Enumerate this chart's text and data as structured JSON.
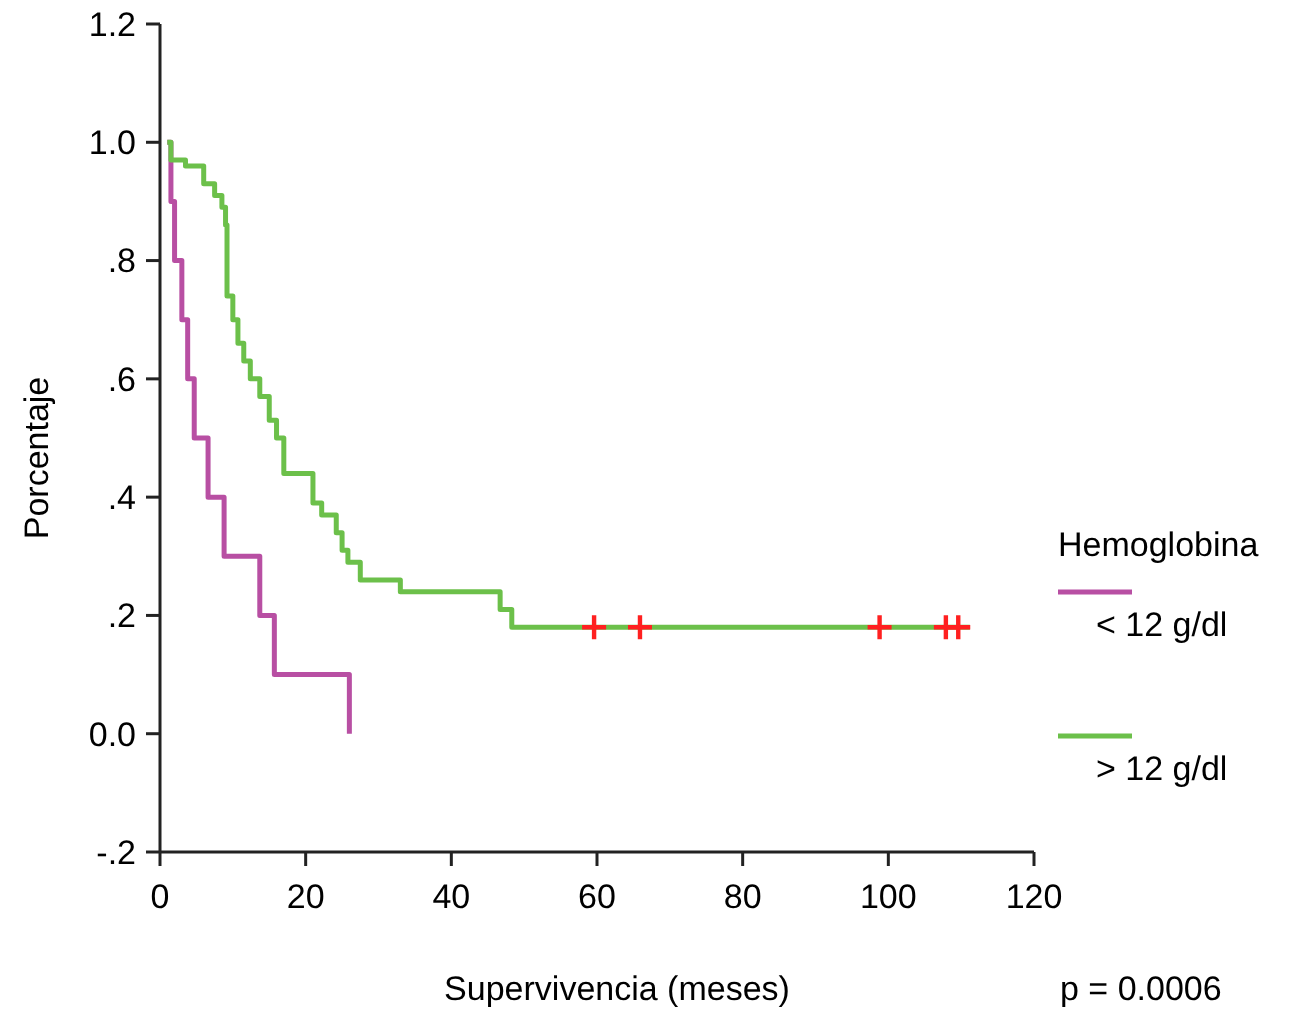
{
  "chart_data": {
    "type": "step",
    "xlabel": "Supervivencia (meses)",
    "ylabel": "Porcentaje",
    "legend_title": "Hemoglobina",
    "legend": "right",
    "grid": false,
    "xlim": [
      0,
      120
    ],
    "xticks": [
      0,
      20,
      40,
      60,
      80,
      100,
      120
    ],
    "ylim": [
      -0.2,
      1.2
    ],
    "yticks": [
      {
        "value": -0.2,
        "label": "-.2"
      },
      {
        "value": 0,
        "label": "0.0"
      },
      {
        "value": 0.2,
        "label": ".2"
      },
      {
        "value": 0.4,
        "label": ".4"
      },
      {
        "value": 0.6,
        "label": ".6"
      },
      {
        "value": 0.8,
        "label": ".8"
      },
      {
        "value": 1,
        "label": "1.0"
      },
      1.2
    ],
    "annotations": [
      "p = 0.0006"
    ],
    "series": [
      {
        "name": "< 12 g/dl",
        "color": "#b84fa3",
        "x": [
          1,
          1.5,
          2,
          3,
          3.8,
          4.7,
          6.6,
          8.8,
          13.7,
          15.7,
          26
        ],
        "values": [
          1,
          0.9,
          0.8,
          0.7,
          0.6,
          0.5,
          0.4,
          0.3,
          0.2,
          0.1,
          0
        ]
      },
      {
        "name": "> 12 g/dl",
        "color": "#6cc04a",
        "x": [
          1,
          1.5,
          3.5,
          6,
          7.5,
          8.5,
          9,
          9.2,
          10,
          10.7,
          11.5,
          12.4,
          13.7,
          15,
          16,
          17,
          21,
          22.2,
          24.2,
          25,
          25.8,
          27.5,
          33,
          46.7,
          48.3,
          111.2
        ],
        "values": [
          1,
          0.97,
          0.96,
          0.93,
          0.91,
          0.89,
          0.86,
          0.74,
          0.7,
          0.66,
          0.63,
          0.6,
          0.57,
          0.53,
          0.5,
          0.44,
          0.39,
          0.37,
          0.34,
          0.31,
          0.29,
          0.26,
          0.24,
          0.21,
          0.18,
          0.18
        ]
      },
      {
        "type": "scatter",
        "marker": "cross",
        "color": "#ff2020",
        "x": [
          59.6,
          65.9,
          98.8,
          107.9,
          109.6
        ],
        "values": [
          0.18,
          0.18,
          0.18,
          0.18,
          0.18
        ]
      }
    ]
  }
}
